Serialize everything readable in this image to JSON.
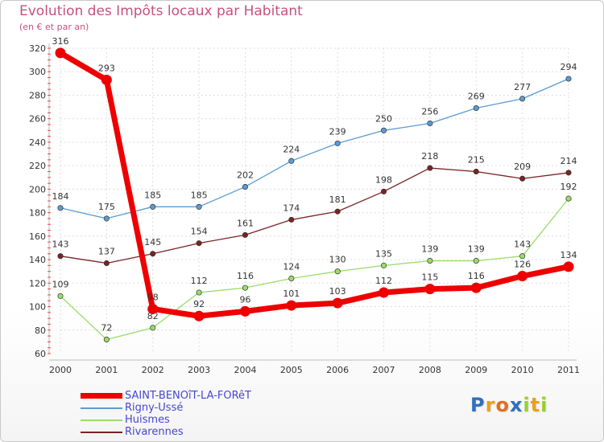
{
  "chart_data": {
    "type": "line",
    "title": "Evolution des Impôts locaux par Habitant",
    "subtitle": "(en € et par an)",
    "categories": [
      "2000",
      "2001",
      "2002",
      "2003",
      "2004",
      "2005",
      "2006",
      "2007",
      "2008",
      "2009",
      "2010",
      "2011"
    ],
    "ylim": [
      60,
      320
    ],
    "yticks": [
      "60",
      "80",
      "100",
      "120",
      "140",
      "160",
      "180",
      "200",
      "220",
      "240",
      "260",
      "280",
      "300",
      "320"
    ],
    "series": [
      {
        "name": "Rigny-Ussé",
        "color": "#5c9bd1",
        "values": [
          184,
          175,
          185,
          185,
          202,
          224,
          239,
          250,
          256,
          269,
          277,
          294
        ]
      },
      {
        "name": "Rivarennes",
        "color": "#7a2323",
        "values": [
          143,
          137,
          145,
          154,
          161,
          174,
          181,
          198,
          218,
          215,
          209,
          214
        ]
      },
      {
        "name": "Huismes",
        "color": "#9adc6a",
        "values": [
          109,
          72,
          82,
          112,
          116,
          124,
          130,
          135,
          139,
          139,
          143,
          192
        ]
      },
      {
        "name": "SAINT-BENOîT-LA-FORêT",
        "color": "#ee0000",
        "values": [
          316,
          293,
          98,
          92,
          96,
          101,
          103,
          112,
          115,
          116,
          126,
          134
        ]
      }
    ],
    "legend": [
      "SAINT-BENOîT-LA-FORêT",
      "Rigny-Ussé",
      "Huismes",
      "Rivarennes"
    ]
  },
  "logo": {
    "letters": [
      "P",
      "r",
      "o",
      "x",
      "i",
      "t",
      "i"
    ],
    "colors": [
      "#2f6fbf",
      "#e8a11d",
      "#e07020",
      "#2f6fbf",
      "#9acd32",
      "#e8a11d",
      "#9acd32"
    ]
  }
}
